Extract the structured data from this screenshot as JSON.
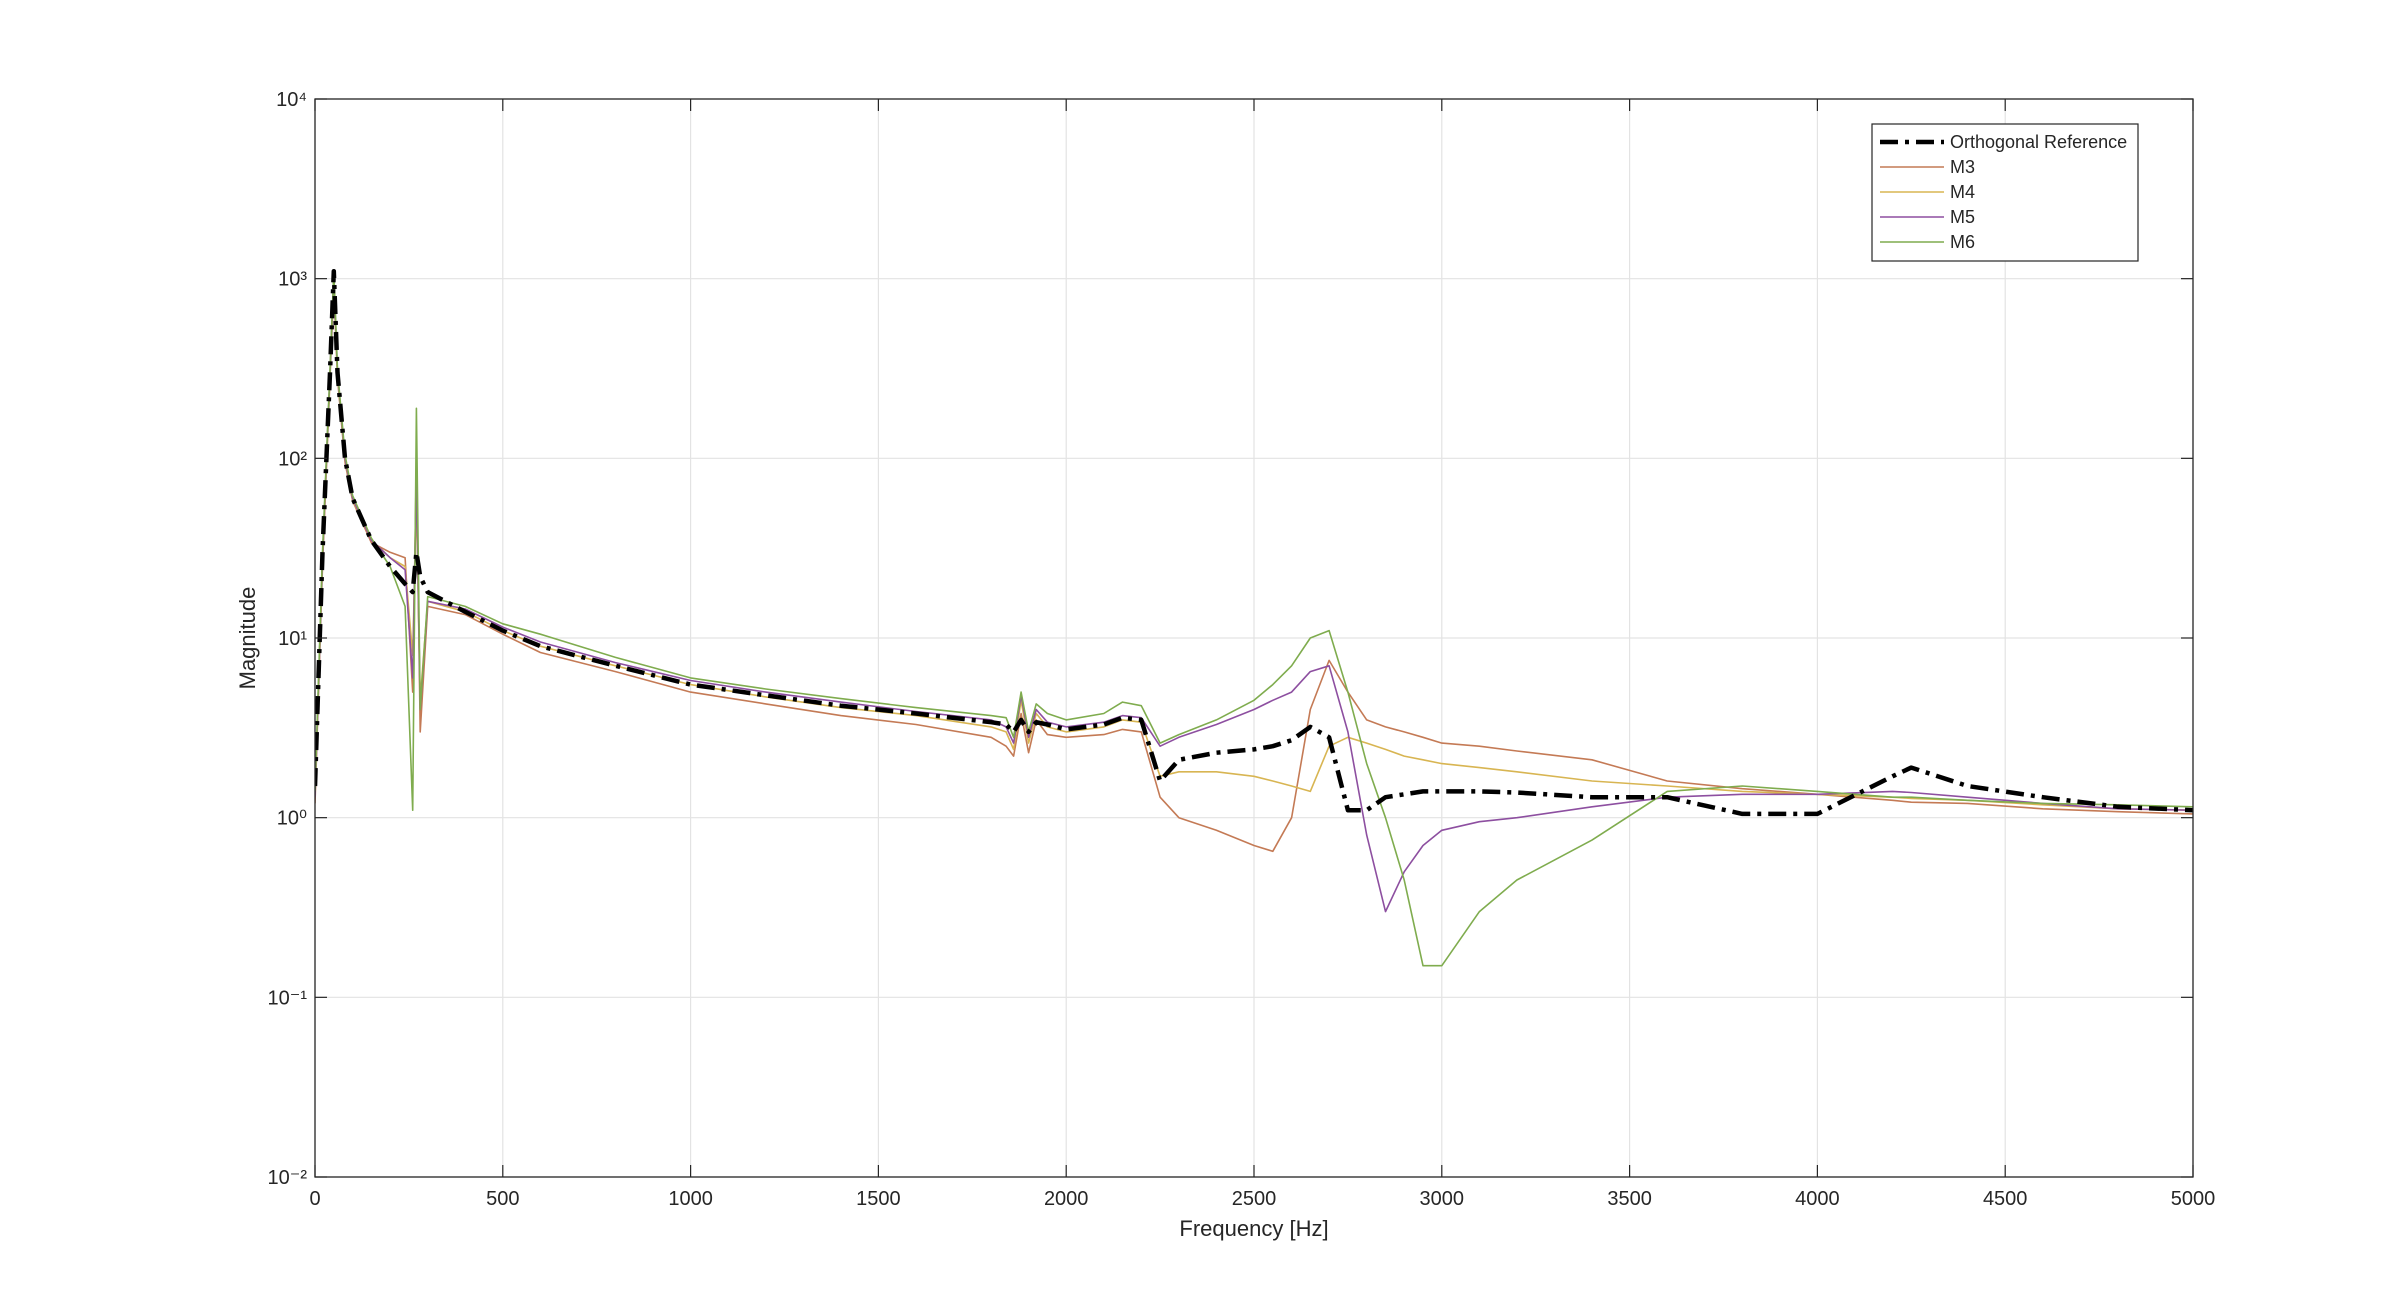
{
  "chart_data": {
    "type": "line",
    "xlabel": "Frequency [Hz]",
    "ylabel": "Magnitude",
    "yscale": "log",
    "grid": true,
    "legend": "northeast",
    "xlim": [
      0,
      5000
    ],
    "xticks": [
      0,
      500,
      1000,
      1500,
      2000,
      2500,
      3000,
      3500,
      4000,
      4500,
      5000
    ],
    "ylim": [
      0.01,
      10000
    ],
    "yticks": [
      {
        "value": 0.01,
        "label": "10⁻²"
      },
      {
        "value": 0.1,
        "label": "10⁻¹"
      },
      {
        "value": 1,
        "label": "10⁰"
      },
      {
        "value": 10,
        "label": "10¹"
      },
      {
        "value": 100,
        "label": "10²"
      },
      {
        "value": 1000,
        "label": "10³"
      },
      {
        "value": 10000,
        "label": "10⁴"
      }
    ],
    "x": [
      0,
      20,
      40,
      50,
      60,
      80,
      100,
      150,
      200,
      240,
      260,
      270,
      280,
      300,
      400,
      500,
      600,
      800,
      1000,
      1200,
      1400,
      1600,
      1800,
      1840,
      1860,
      1880,
      1900,
      1920,
      1950,
      2000,
      2100,
      2150,
      2200,
      2250,
      2300,
      2400,
      2500,
      2550,
      2600,
      2650,
      2700,
      2750,
      2800,
      2850,
      2900,
      2950,
      3000,
      3100,
      3200,
      3400,
      3600,
      3800,
      4000,
      4200,
      4250,
      4400,
      4600,
      4800,
      5000
    ],
    "series": [
      {
        "name": "M3",
        "color": "#c47a55",
        "style": "solid",
        "values": [
          1.2,
          25,
          280,
          900,
          280,
          95,
          58,
          34,
          30,
          28,
          5,
          100,
          3,
          15,
          13.5,
          10.5,
          8.3,
          6.5,
          5,
          4.3,
          3.7,
          3.3,
          2.8,
          2.5,
          2.2,
          3.8,
          2.3,
          3.5,
          2.9,
          2.8,
          2.9,
          3.1,
          3.0,
          1.3,
          1.0,
          0.85,
          0.7,
          0.65,
          1.0,
          4,
          7.5,
          5,
          3.5,
          3.2,
          3.0,
          2.8,
          2.6,
          2.5,
          2.35,
          2.1,
          1.6,
          1.45,
          1.35,
          1.25,
          1.22,
          1.2,
          1.12,
          1.08,
          1.05
        ]
      },
      {
        "name": "M4",
        "color": "#d8b552",
        "style": "solid",
        "values": [
          1.3,
          28,
          290,
          1000,
          290,
          98,
          59,
          35,
          28,
          25,
          8,
          60,
          4.5,
          16,
          14,
          11,
          9,
          7,
          5.5,
          4.7,
          4.1,
          3.7,
          3.2,
          3.0,
          2.4,
          4.5,
          2.6,
          3.8,
          3.2,
          3.0,
          3.2,
          3.5,
          3.4,
          1.7,
          1.8,
          1.8,
          1.7,
          1.6,
          1.5,
          1.4,
          2.5,
          2.8,
          2.6,
          2.4,
          2.2,
          2.1,
          2.0,
          1.9,
          1.8,
          1.6,
          1.5,
          1.4,
          1.35,
          1.3,
          1.28,
          1.25,
          1.18,
          1.12,
          1.1
        ]
      },
      {
        "name": "M5",
        "color": "#8d4fa0",
        "style": "solid",
        "values": [
          1.3,
          28,
          300,
          1050,
          300,
          100,
          60,
          35,
          28,
          24,
          6,
          80,
          4,
          16,
          14.5,
          11.5,
          9.5,
          7.3,
          5.8,
          5.0,
          4.4,
          3.9,
          3.5,
          3.2,
          2.6,
          4.8,
          2.8,
          4.0,
          3.4,
          3.2,
          3.4,
          3.7,
          3.6,
          2.5,
          2.8,
          3.3,
          4,
          4.5,
          5,
          6.5,
          7,
          3,
          0.8,
          0.3,
          0.5,
          0.7,
          0.85,
          0.95,
          1.0,
          1.15,
          1.3,
          1.35,
          1.35,
          1.4,
          1.38,
          1.3,
          1.2,
          1.12,
          1.1
        ]
      },
      {
        "name": "M6",
        "color": "#7fac4e",
        "style": "solid",
        "values": [
          1.4,
          30,
          310,
          1100,
          310,
          105,
          62,
          36,
          25,
          15,
          1.1,
          190,
          4,
          17,
          15,
          12,
          10.5,
          7.8,
          6,
          5.2,
          4.6,
          4.1,
          3.7,
          3.6,
          2.8,
          5,
          3.0,
          4.3,
          3.8,
          3.5,
          3.8,
          4.4,
          4.2,
          2.6,
          2.9,
          3.5,
          4.5,
          5.5,
          7,
          10,
          11,
          5,
          2.0,
          1.0,
          0.45,
          0.15,
          0.15,
          0.3,
          0.45,
          0.75,
          1.4,
          1.5,
          1.4,
          1.3,
          1.3,
          1.25,
          1.2,
          1.18,
          1.15
        ]
      },
      {
        "name": "Orthogonal Reference",
        "color": "#000000",
        "style": "dashdot",
        "values": [
          1.5,
          30,
          300,
          1100,
          300,
          100,
          60,
          35,
          25,
          20,
          18,
          30,
          22,
          18,
          14,
          11,
          9,
          7,
          5.5,
          4.8,
          4.2,
          3.8,
          3.4,
          3.3,
          3.0,
          3.5,
          3.0,
          3.4,
          3.3,
          3.1,
          3.3,
          3.6,
          3.5,
          1.6,
          2.1,
          2.3,
          2.4,
          2.5,
          2.7,
          3.2,
          2.8,
          1.1,
          1.1,
          1.3,
          1.35,
          1.4,
          1.4,
          1.4,
          1.38,
          1.3,
          1.3,
          1.05,
          1.05,
          1.7,
          1.9,
          1.5,
          1.3,
          1.15,
          1.1
        ]
      }
    ]
  }
}
